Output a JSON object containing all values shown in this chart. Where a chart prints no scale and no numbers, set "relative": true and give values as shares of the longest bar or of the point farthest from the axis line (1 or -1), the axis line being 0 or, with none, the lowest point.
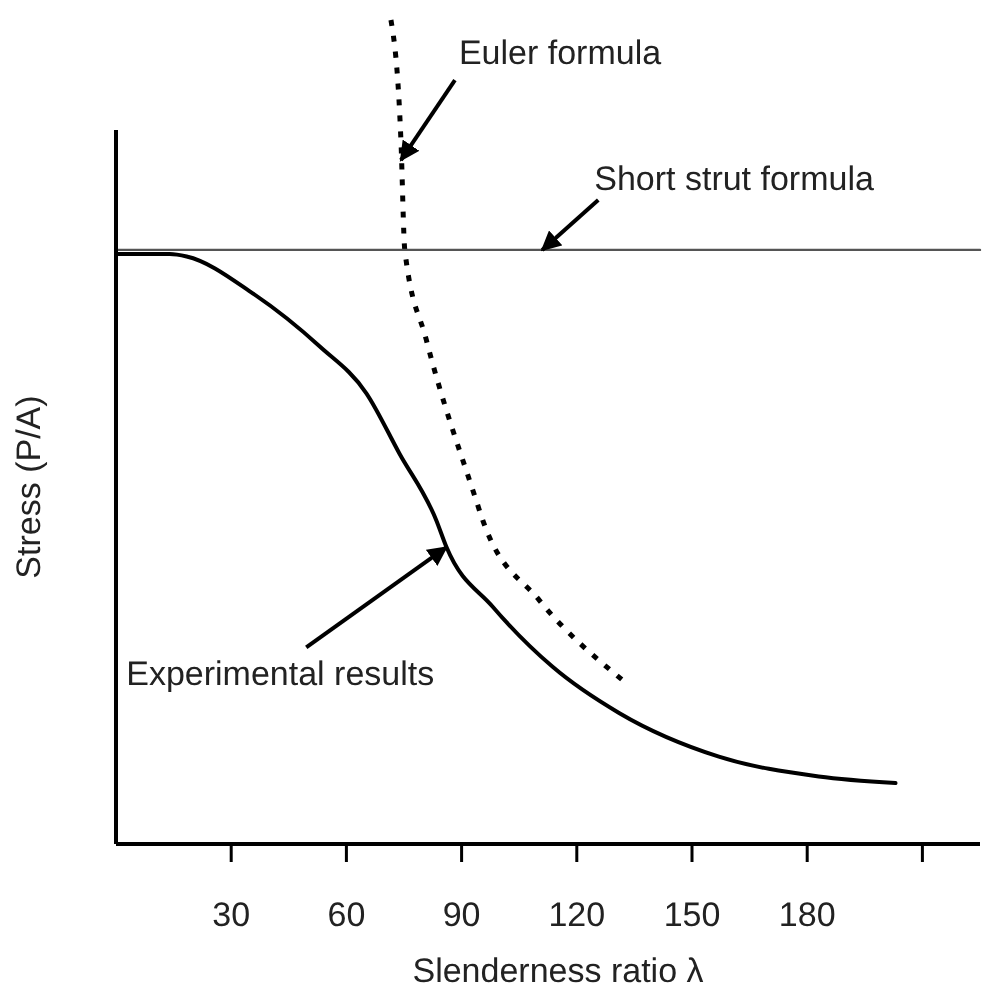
{
  "chart_data": {
    "type": "line",
    "relative": true,
    "xlabel": "Slenderness ratio λ",
    "ylabel": "Stress (P/A)",
    "xlim": [
      0,
      225
    ],
    "xticks": [
      30,
      60,
      90,
      120,
      150,
      180,
      {
        "value": 210,
        "label": null
      }
    ],
    "tick_labels": "x",
    "series": [
      {
        "color": "#000000",
        "line_style": "dotted",
        "x": [
          71.6,
          74.2,
          75.2,
          80.8,
          93.8,
          95.5,
          110.2,
          131.9
        ],
        "values": [
          1.0,
          0.854,
          0.721,
          0.612,
          0.417,
          0.393,
          0.296,
          0.199
        ]
      },
      {
        "color": "#555555",
        "line_style": "solid",
        "x": [
          0,
          225
        ],
        "values": [
          0.721,
          0.721
        ]
      },
      {
        "color": "#000000",
        "line_style": "solid",
        "x": [
          0,
          14,
          18.4,
          35.7,
          53,
          65.2,
          73.8,
          83.4,
          86,
          98.1,
          113.7,
          131,
          157,
          183,
          203
        ],
        "values": [
          0.716,
          0.716,
          0.713,
          0.668,
          0.604,
          0.547,
          0.474,
          0.393,
          0.361,
          0.288,
          0.215,
          0.159,
          0.106,
          0.082,
          0.074
        ]
      }
    ],
    "annotations": [
      {
        "text": "Euler formula",
        "x": 74.2,
        "y": 0.83
      },
      {
        "text": "Short strut formula",
        "x": 111,
        "y": 0.721
      },
      {
        "text": "Experimental results",
        "x": 86,
        "y": 0.36
      }
    ]
  }
}
